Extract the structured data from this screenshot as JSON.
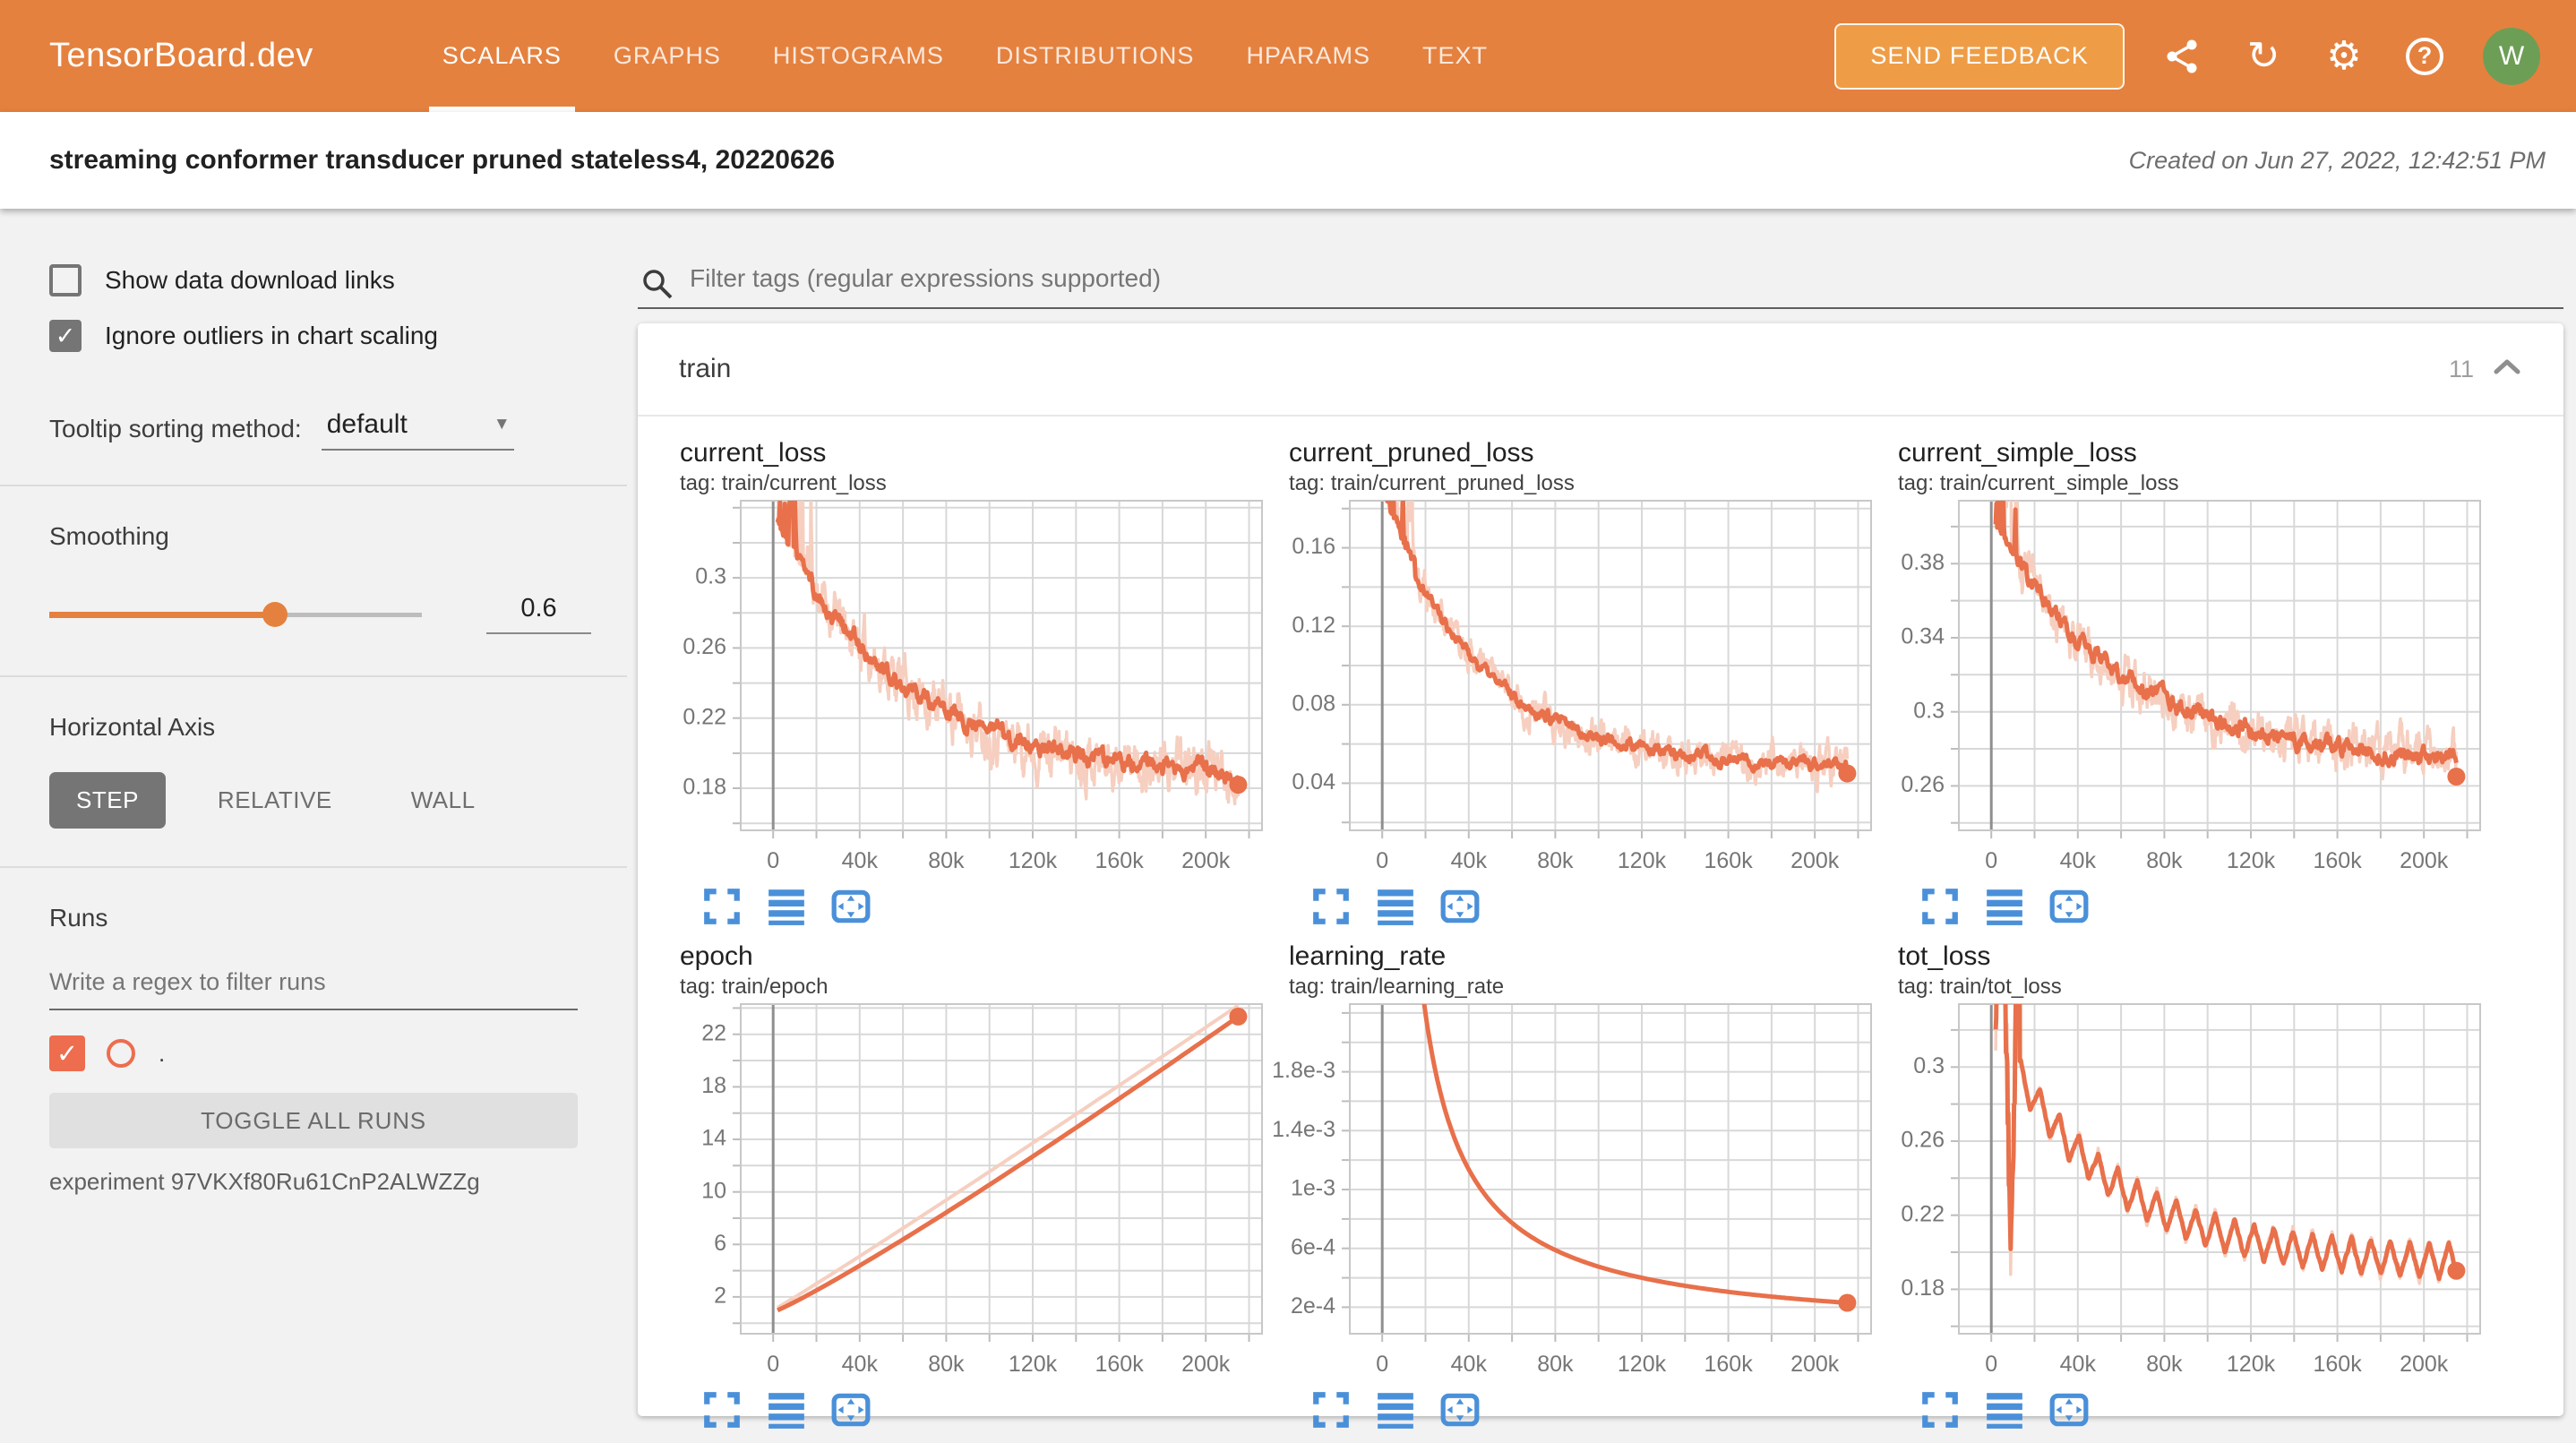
{
  "header": {
    "logo": "TensorBoard.dev",
    "tabs": [
      {
        "label": "SCALARS",
        "active": true
      },
      {
        "label": "GRAPHS",
        "active": false
      },
      {
        "label": "HISTOGRAMS",
        "active": false
      },
      {
        "label": "DISTRIBUTIONS",
        "active": false
      },
      {
        "label": "HPARAMS",
        "active": false
      },
      {
        "label": "TEXT",
        "active": false
      }
    ],
    "send_feedback_label": "SEND FEEDBACK",
    "avatar_initial": "W"
  },
  "titlebar": {
    "title": "streaming conformer transducer pruned stateless4, 20220626",
    "created": "Created on Jun 27, 2022, 12:42:51 PM"
  },
  "sidebar": {
    "show_download_label": "Show data download links",
    "ignore_outliers_label": "Ignore outliers in chart scaling",
    "tooltip_sorting_label": "Tooltip sorting method:",
    "tooltip_sorting_value": "default",
    "smoothing_label": "Smoothing",
    "smoothing_value": "0.6",
    "smoothing_percent": 60,
    "horizontal_axis_label": "Horizontal Axis",
    "axis_options": [
      {
        "label": "STEP",
        "selected": true
      },
      {
        "label": "RELATIVE",
        "selected": false
      },
      {
        "label": "WALL",
        "selected": false
      }
    ],
    "runs_label": "Runs",
    "runs_filter_placeholder": "Write a regex to filter runs",
    "run_name": ".",
    "run_checked": true,
    "toggle_all_label": "TOGGLE ALL RUNS",
    "experiment_label": "experiment 97VKXf80Ru61CnP2ALWZZg"
  },
  "main": {
    "filter_placeholder": "Filter tags (regular expressions supported)",
    "section_name": "train",
    "section_count": "11"
  },
  "icons": {
    "checkmark": "✓",
    "dropdown_caret": "▼",
    "refresh": "↻",
    "settings": "⚙",
    "help": "?",
    "search-icon": "svg-magnifier",
    "share-icon": "svg-share-nodes",
    "collapse-icon": "svg-chevron-up",
    "fullscreen-icon": "svg-corner-brackets",
    "flatten-icon": "svg-horizontal-bars",
    "fit-domain-icon": "svg-rect-inward-arrows"
  },
  "colors": {
    "header_orange": "#e5813e",
    "feedback_orange": "#ee9d46",
    "avatar_green": "#6d9e56",
    "accent_orange": "#e5813e",
    "run_accent": "#ed6d4e",
    "line": "#e8704a",
    "line_light": "#f6cfc0",
    "icon_blue": "#4a90d9",
    "grid": "#d8d8d8",
    "axis_label": "#767676"
  },
  "chart_data": [
    {
      "id": "current_loss",
      "title": "current_loss",
      "tag": "tag: train/current_loss",
      "type": "line",
      "xlim": [
        -15000,
        226000
      ],
      "xgrid": 20000,
      "xticks": [
        [
          0,
          "0"
        ],
        [
          40000,
          "40k"
        ],
        [
          80000,
          "80k"
        ],
        [
          120000,
          "120k"
        ],
        [
          160000,
          "160k"
        ],
        [
          200000,
          "200k"
        ]
      ],
      "ylim": [
        0.156,
        0.344
      ],
      "ygrid": 0.02,
      "yticks": [
        [
          0.18,
          "0.18"
        ],
        [
          0.22,
          "0.22"
        ],
        [
          0.26,
          "0.26"
        ],
        [
          0.3,
          "0.3"
        ]
      ],
      "series": [
        {
          "kind": "noisy",
          "start": 0.335,
          "end": 0.185,
          "tau": 60000,
          "noise": 0.034,
          "spike_until": 18000,
          "spike_amp": 4,
          "seed": 11,
          "points": 800,
          "color": "band",
          "width": 3.5
        },
        {
          "kind": "noisy",
          "start": 0.335,
          "end": 0.185,
          "tau": 60000,
          "noise": 0.013,
          "spike_until": 18000,
          "spike_amp": 5,
          "seed": 12,
          "points": 560,
          "color": "main",
          "width": 5
        }
      ],
      "end_dot": [
        215000,
        0.182
      ]
    },
    {
      "id": "current_pruned_loss",
      "title": "current_pruned_loss",
      "tag": "tag: train/current_pruned_loss",
      "type": "line",
      "xlim": [
        -15000,
        226000
      ],
      "xgrid": 20000,
      "xticks": [
        [
          0,
          "0"
        ],
        [
          40000,
          "40k"
        ],
        [
          80000,
          "80k"
        ],
        [
          120000,
          "120k"
        ],
        [
          160000,
          "160k"
        ],
        [
          200000,
          "200k"
        ]
      ],
      "ylim": [
        0.016,
        0.184
      ],
      "ygrid": 0.02,
      "yticks": [
        [
          0.04,
          "0.04"
        ],
        [
          0.08,
          "0.08"
        ],
        [
          0.12,
          "0.12"
        ],
        [
          0.16,
          "0.16"
        ]
      ],
      "series": [
        {
          "kind": "noisy",
          "start": 0.19,
          "end": 0.048,
          "tau": 45000,
          "noise": 0.022,
          "spike_until": 15000,
          "spike_amp": 5,
          "seed": 21,
          "points": 800,
          "color": "band",
          "width": 3.5
        },
        {
          "kind": "noisy",
          "start": 0.19,
          "end": 0.048,
          "tau": 45000,
          "noise": 0.008,
          "spike_until": 15000,
          "spike_amp": 6,
          "seed": 22,
          "points": 560,
          "color": "main",
          "width": 5
        }
      ],
      "end_dot": [
        215000,
        0.045
      ]
    },
    {
      "id": "current_simple_loss",
      "title": "current_simple_loss",
      "tag": "tag: train/current_simple_loss",
      "type": "line",
      "xlim": [
        -15000,
        226000
      ],
      "xgrid": 20000,
      "xticks": [
        [
          0,
          "0"
        ],
        [
          40000,
          "40k"
        ],
        [
          80000,
          "80k"
        ],
        [
          120000,
          "120k"
        ],
        [
          160000,
          "160k"
        ],
        [
          200000,
          "200k"
        ]
      ],
      "ylim": [
        0.236,
        0.414
      ],
      "ygrid": 0.02,
      "yticks": [
        [
          0.26,
          "0.26"
        ],
        [
          0.3,
          "0.3"
        ],
        [
          0.34,
          "0.34"
        ],
        [
          0.38,
          "0.38"
        ]
      ],
      "series": [
        {
          "kind": "noisy",
          "start": 0.405,
          "end": 0.272,
          "tau": 60000,
          "noise": 0.03,
          "spike_until": 12000,
          "spike_amp": 3,
          "seed": 31,
          "points": 800,
          "color": "band",
          "width": 3.5
        },
        {
          "kind": "noisy",
          "start": 0.405,
          "end": 0.272,
          "tau": 60000,
          "noise": 0.012,
          "spike_until": 12000,
          "spike_amp": 4,
          "seed": 32,
          "points": 560,
          "color": "main",
          "width": 5
        }
      ],
      "end_dot": [
        215000,
        0.265
      ]
    },
    {
      "id": "epoch",
      "title": "epoch",
      "tag": "tag: train/epoch",
      "type": "line",
      "xlim": [
        -15000,
        226000
      ],
      "xgrid": 20000,
      "xticks": [
        [
          0,
          "0"
        ],
        [
          40000,
          "40k"
        ],
        [
          80000,
          "80k"
        ],
        [
          120000,
          "120k"
        ],
        [
          160000,
          "160k"
        ],
        [
          200000,
          "200k"
        ]
      ],
      "ylim": [
        -0.8,
        24.3
      ],
      "ygrid": 2,
      "yticks": [
        [
          2,
          "2"
        ],
        [
          6,
          "6"
        ],
        [
          10,
          "10"
        ],
        [
          14,
          "14"
        ],
        [
          18,
          "18"
        ],
        [
          22,
          "22"
        ]
      ],
      "series": [
        {
          "kind": "power",
          "y0": 1.0,
          "y1": 24.2,
          "pow": 1.03,
          "points": 120,
          "color": "band",
          "width": 4
        },
        {
          "kind": "power",
          "y0": 0.85,
          "y1": 23.35,
          "pow": 1.1,
          "points": 120,
          "color": "main",
          "width": 5
        }
      ],
      "end_dot": [
        215000,
        23.35
      ]
    },
    {
      "id": "learning_rate",
      "title": "learning_rate",
      "tag": "tag: train/learning_rate",
      "type": "line",
      "xlim": [
        -15000,
        226000
      ],
      "xgrid": 20000,
      "xticks": [
        [
          0,
          "0"
        ],
        [
          40000,
          "40k"
        ],
        [
          80000,
          "80k"
        ],
        [
          120000,
          "120k"
        ],
        [
          160000,
          "160k"
        ],
        [
          200000,
          "200k"
        ]
      ],
      "ylim": [
        2e-05,
        0.00226
      ],
      "ygrid": 0.0002,
      "yticks": [
        [
          0.0002,
          "2e-4"
        ],
        [
          0.0006,
          "6e-4"
        ],
        [
          0.001,
          "1e-3"
        ],
        [
          0.0014,
          "1.4e-3"
        ],
        [
          0.0018,
          "1.8e-3"
        ]
      ],
      "series": [
        {
          "kind": "lrdecay",
          "end": 0.00023,
          "p": 0.95,
          "points": 300,
          "color": "main",
          "width": 5
        }
      ],
      "end_dot": [
        215000,
        0.00023
      ]
    },
    {
      "id": "tot_loss",
      "title": "tot_loss",
      "tag": "tag: train/tot_loss",
      "type": "line",
      "xlim": [
        -15000,
        226000
      ],
      "xgrid": 20000,
      "xticks": [
        [
          0,
          "0"
        ],
        [
          40000,
          "40k"
        ],
        [
          80000,
          "80k"
        ],
        [
          120000,
          "120k"
        ],
        [
          160000,
          "160k"
        ],
        [
          200000,
          "200k"
        ]
      ],
      "ylim": [
        0.156,
        0.334
      ],
      "ygrid": 0.02,
      "yticks": [
        [
          0.18,
          "0.18"
        ],
        [
          0.22,
          "0.22"
        ],
        [
          0.26,
          "0.26"
        ],
        [
          0.3,
          "0.3"
        ]
      ],
      "series": [
        {
          "kind": "zigzag",
          "start": 0.325,
          "end": 0.193,
          "tau": 52000,
          "amp": 0.0105,
          "period": 9000,
          "noise": 0.005,
          "spike_until": 13000,
          "spike_amp": 12,
          "seed": 61,
          "points": 800,
          "color": "band",
          "width": 3.5
        },
        {
          "kind": "zigzag",
          "start": 0.325,
          "end": 0.193,
          "tau": 52000,
          "amp": 0.0095,
          "period": 9000,
          "noise": 0.002,
          "spike_until": 13000,
          "spike_amp": 12,
          "seed": 62,
          "points": 800,
          "color": "main",
          "width": 5
        }
      ],
      "end_dot": [
        215000,
        0.19
      ]
    }
  ]
}
